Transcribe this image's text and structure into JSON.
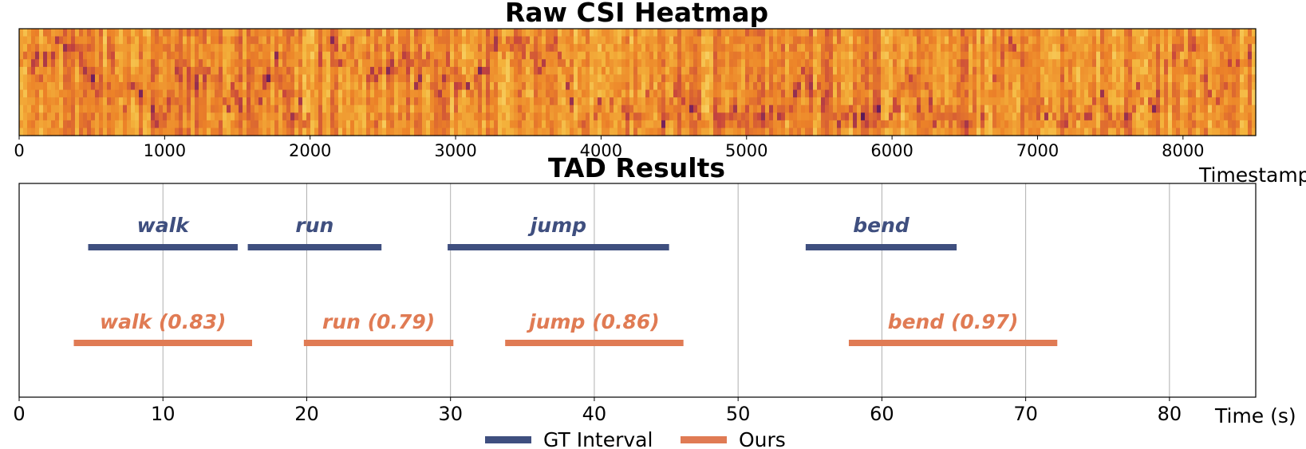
{
  "colors": {
    "gt": "#3f4f7f",
    "ours": "#e07b54",
    "grid": "#b0b0b0"
  },
  "chart_data": [
    {
      "type": "heatmap",
      "title": "Raw CSI Heatmap",
      "xlabel": "Timestamp",
      "xlim": [
        0,
        8500
      ],
      "xticks": [
        0,
        1000,
        2000,
        3000,
        4000,
        5000,
        6000,
        7000,
        8000
      ],
      "colormap": "inferno-like (dark purple to light yellow)",
      "y_ticks_shown": false
    },
    {
      "type": "interval",
      "title": "TAD Results",
      "xlabel": "Time (s)",
      "xlim": [
        0,
        86
      ],
      "xticks": [
        0,
        10,
        20,
        30,
        40,
        50,
        60,
        70,
        80
      ],
      "grid": "vertical",
      "legend": {
        "placement": "bottom-center",
        "entries": [
          "GT Interval",
          "Ours"
        ]
      },
      "series": [
        {
          "name": "GT Interval",
          "intervals": [
            {
              "label": "walk",
              "start": 4.8,
              "end": 15.2
            },
            {
              "label": "run",
              "start": 15.9,
              "end": 25.2
            },
            {
              "label": "jump",
              "start": 29.8,
              "end": 45.2
            },
            {
              "label": "bend",
              "start": 54.7,
              "end": 65.2
            }
          ]
        },
        {
          "name": "Ours",
          "intervals": [
            {
              "label": "walk (0.83)",
              "start": 3.8,
              "end": 16.2
            },
            {
              "label": "run (0.79)",
              "start": 19.8,
              "end": 30.2
            },
            {
              "label": "jump (0.86)",
              "start": 33.8,
              "end": 46.2
            },
            {
              "label": "bend (0.97)",
              "start": 57.7,
              "end": 72.2
            }
          ]
        }
      ]
    }
  ]
}
